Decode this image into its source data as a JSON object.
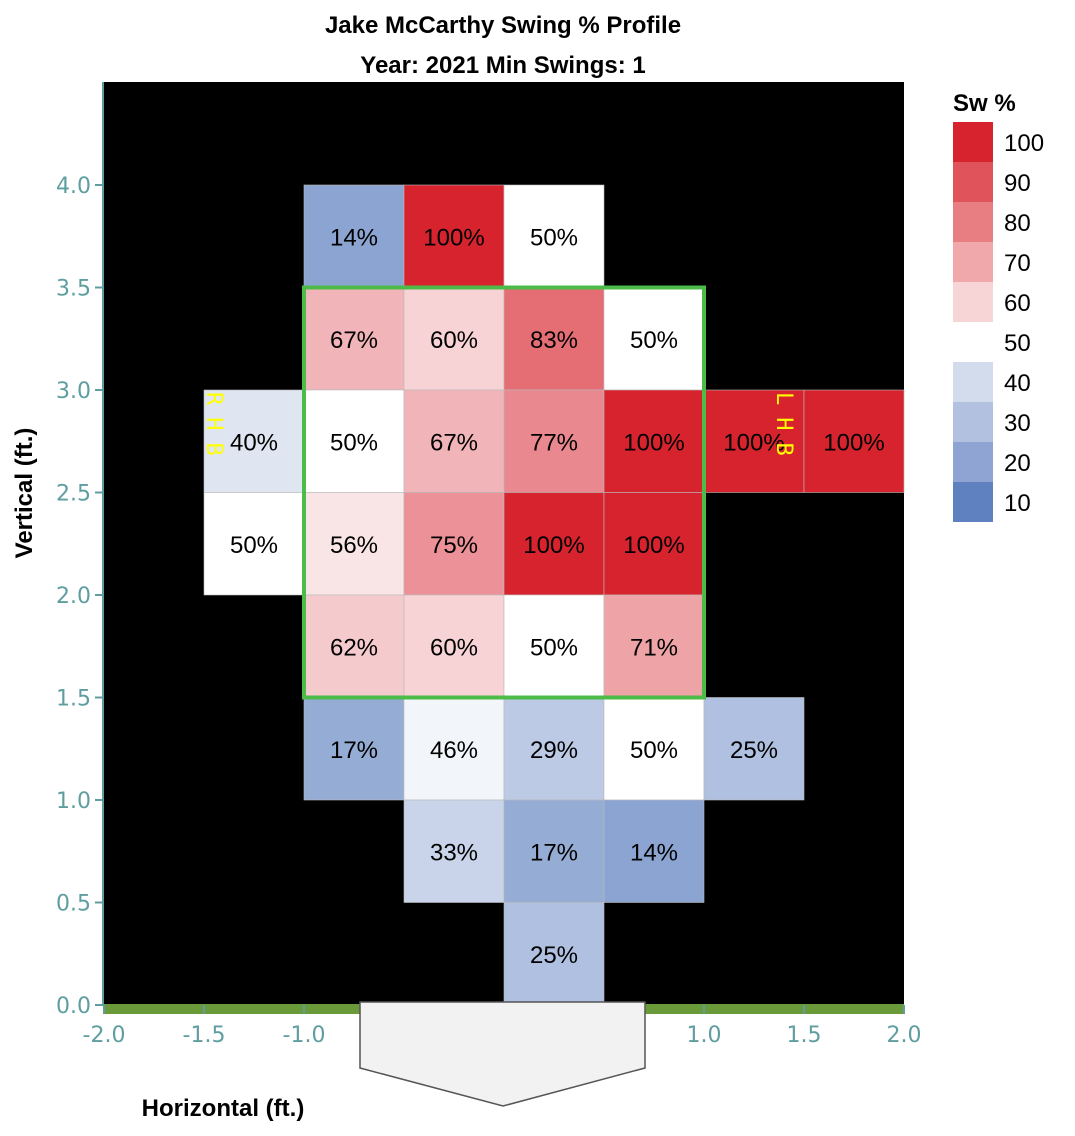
{
  "chart_data": {
    "type": "heatmap",
    "title": "Jake McCarthy Swing % Profile",
    "subtitle": "Year: 2021 Min Swings: 1",
    "xlabel": "Horizontal (ft.)",
    "ylabel": "Vertical (ft.)",
    "xlim": [
      -2.0,
      2.0
    ],
    "ylim": [
      0.0,
      4.5
    ],
    "x_ticks": [
      "-2.0",
      "-1.5",
      "-1.0",
      "1.0",
      "1.5",
      "2.0"
    ],
    "x_tick_values": [
      -2.0,
      -1.5,
      -1.0,
      1.0,
      1.5,
      2.0
    ],
    "y_ticks": [
      "0.0",
      "0.5",
      "1.0",
      "1.5",
      "2.0",
      "2.5",
      "3.0",
      "3.5",
      "4.0"
    ],
    "y_tick_values": [
      0.0,
      0.5,
      1.0,
      1.5,
      2.0,
      2.5,
      3.0,
      3.5,
      4.0
    ],
    "background_color": "#000000",
    "strike_zone": {
      "x": [
        -1.0,
        1.0
      ],
      "y": [
        1.5,
        3.5
      ],
      "color": "#4cbb47"
    },
    "ground_color": "#6a9a3a",
    "cells": [
      {
        "x": -1.0,
        "y": 3.5,
        "value": 14,
        "label": "14%"
      },
      {
        "x": -0.5,
        "y": 3.5,
        "value": 100,
        "label": "100%"
      },
      {
        "x": 0.0,
        "y": 3.5,
        "value": 50,
        "label": "50%"
      },
      {
        "x": -1.0,
        "y": 3.0,
        "value": 67,
        "label": "67%"
      },
      {
        "x": -0.5,
        "y": 3.0,
        "value": 60,
        "label": "60%"
      },
      {
        "x": 0.0,
        "y": 3.0,
        "value": 83,
        "label": "83%"
      },
      {
        "x": 0.5,
        "y": 3.0,
        "value": 50,
        "label": "50%"
      },
      {
        "x": -1.5,
        "y": 2.5,
        "value": 40,
        "label": "40%"
      },
      {
        "x": -1.0,
        "y": 2.5,
        "value": 50,
        "label": "50%"
      },
      {
        "x": -0.5,
        "y": 2.5,
        "value": 67,
        "label": "67%"
      },
      {
        "x": 0.0,
        "y": 2.5,
        "value": 77,
        "label": "77%"
      },
      {
        "x": 0.5,
        "y": 2.5,
        "value": 100,
        "label": "100%"
      },
      {
        "x": 1.0,
        "y": 2.5,
        "value": 100,
        "label": "100%"
      },
      {
        "x": 1.5,
        "y": 2.5,
        "value": 100,
        "label": "100%"
      },
      {
        "x": -1.5,
        "y": 2.0,
        "value": 50,
        "label": "50%"
      },
      {
        "x": -1.0,
        "y": 2.0,
        "value": 56,
        "label": "56%"
      },
      {
        "x": -0.5,
        "y": 2.0,
        "value": 75,
        "label": "75%"
      },
      {
        "x": 0.0,
        "y": 2.0,
        "value": 100,
        "label": "100%"
      },
      {
        "x": 0.5,
        "y": 2.0,
        "value": 100,
        "label": "100%"
      },
      {
        "x": -1.0,
        "y": 1.5,
        "value": 62,
        "label": "62%"
      },
      {
        "x": -0.5,
        "y": 1.5,
        "value": 60,
        "label": "60%"
      },
      {
        "x": 0.0,
        "y": 1.5,
        "value": 50,
        "label": "50%"
      },
      {
        "x": 0.5,
        "y": 1.5,
        "value": 71,
        "label": "71%"
      },
      {
        "x": -1.0,
        "y": 1.0,
        "value": 17,
        "label": "17%"
      },
      {
        "x": -0.5,
        "y": 1.0,
        "value": 46,
        "label": "46%"
      },
      {
        "x": 0.0,
        "y": 1.0,
        "value": 29,
        "label": "29%"
      },
      {
        "x": 0.5,
        "y": 1.0,
        "value": 50,
        "label": "50%"
      },
      {
        "x": 1.0,
        "y": 1.0,
        "value": 25,
        "label": "25%"
      },
      {
        "x": -0.5,
        "y": 0.5,
        "value": 33,
        "label": "33%"
      },
      {
        "x": 0.0,
        "y": 0.5,
        "value": 17,
        "label": "17%"
      },
      {
        "x": 0.5,
        "y": 0.5,
        "value": 14,
        "label": "14%"
      },
      {
        "x": 0.0,
        "y": 0.0,
        "value": 25,
        "label": "25%"
      }
    ],
    "batter_labels": {
      "rhb": {
        "text": "RHB",
        "x": -1.5,
        "y": 2.75
      },
      "lhb": {
        "text": "LHB",
        "x": 1.35,
        "y": 2.75
      }
    },
    "legend": {
      "title": "Sw %",
      "placement": "right",
      "labels": [
        "100",
        "90",
        "80",
        "70",
        "60",
        "50",
        "40",
        "30",
        "20",
        "10"
      ],
      "colors": [
        "#d7232e",
        "#e1535a",
        "#e97e82",
        "#f0a8aa",
        "#f7d4d5",
        "#ffffff",
        "#d3dcec",
        "#b2c1e0",
        "#8fa4d3",
        "#5f81c0"
      ]
    },
    "color_scale": {
      "low": "#5f81c0",
      "mid": "#ffffff",
      "high": "#d7232e",
      "domain": [
        0,
        50,
        100
      ]
    }
  }
}
